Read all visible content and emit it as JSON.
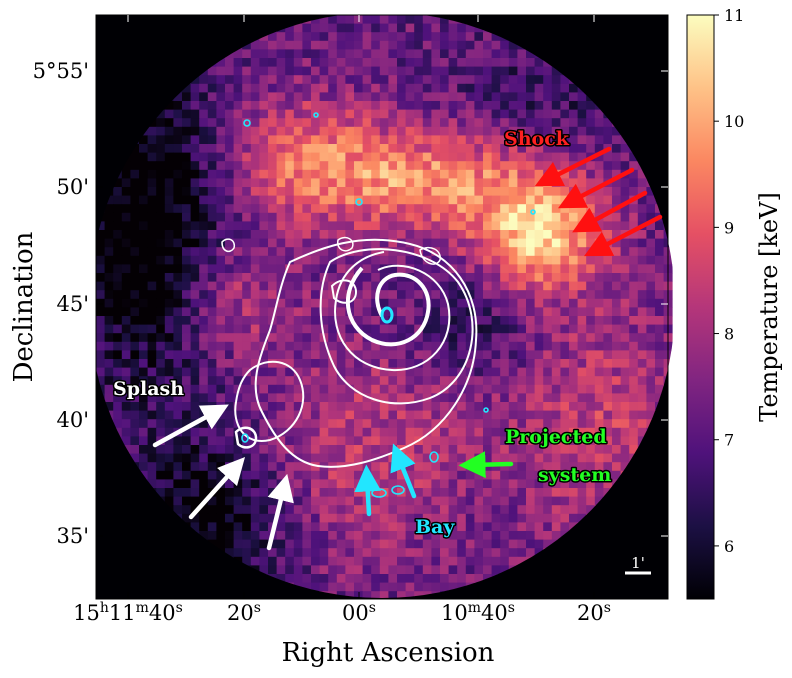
{
  "chart_data": {
    "type": "heatmap",
    "title": "",
    "xlabel": "Right Ascension",
    "ylabel": "Declination",
    "x_ticks": [
      {
        "main": "15",
        "sup1": "h",
        "mid": "11",
        "sup2": "m",
        "tail": "40",
        "sup3": "s"
      },
      {
        "main": "20",
        "sup1": "",
        "mid": "",
        "sup2": "",
        "tail": "",
        "sup3": "s"
      },
      {
        "main": "00",
        "sup1": "",
        "mid": "",
        "sup2": "",
        "tail": "",
        "sup3": "s"
      },
      {
        "main": "10",
        "sup1": "m",
        "mid": "40",
        "sup2": "s",
        "tail": "",
        "sup3": ""
      },
      {
        "main": "20",
        "sup1": "",
        "mid": "",
        "sup2": "",
        "tail": "",
        "sup3": "s"
      }
    ],
    "y_ticks": [
      "5°55'",
      "50'",
      "45'",
      "40'",
      "35'"
    ],
    "colorbar": {
      "label": "Temperature [keV]",
      "colormap": "magma",
      "range": [
        5.5,
        11
      ],
      "ticks": [
        "11",
        "10",
        "9",
        "8",
        "7",
        "6"
      ]
    },
    "annotations": [
      {
        "text": "Shock",
        "color": "#ff2020"
      },
      {
        "text": "Splash",
        "color": "#ffffff"
      },
      {
        "text": "Projected",
        "color": "#22ff22"
      },
      {
        "text": "system",
        "color": "#22ff22"
      },
      {
        "text": "Bay",
        "color": "#22e6ff"
      }
    ],
    "scale_bar": "1'",
    "colors": {
      "shock_arrows": "#ff1010",
      "splash_arrows": "#ffffff",
      "projected_arrow": "#22ff22",
      "bay_arrows": "#22e6ff",
      "contours": "#ffffff",
      "cyan_contours": "#22e6ff"
    }
  }
}
